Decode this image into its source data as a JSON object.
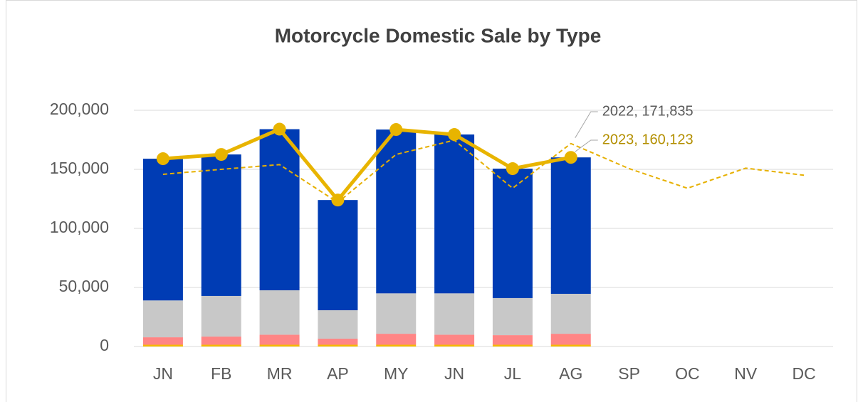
{
  "chart_data": {
    "type": "bar",
    "stacked": true,
    "title": "Motorcycle Domestic Sale by Type",
    "categories": [
      "JN",
      "FB",
      "MR",
      "AP",
      "MY",
      "JN",
      "JL",
      "AG",
      "SP",
      "OC",
      "NV",
      "DC"
    ],
    "ylim": [
      0,
      200000
    ],
    "yticks": [
      {
        "value": 0,
        "label": "0"
      },
      {
        "value": 50000,
        "label": "50,000"
      },
      {
        "value": 100000,
        "label": "100,000"
      },
      {
        "value": 150000,
        "label": "150,000"
      },
      {
        "value": 200000,
        "label": "200,000"
      }
    ],
    "grid": true,
    "series": [
      {
        "color": "#f5b800",
        "values": [
          1500,
          1500,
          1500,
          1500,
          1500,
          1500,
          1500,
          1500,
          null,
          null,
          null,
          null
        ]
      },
      {
        "color": "#ff8585",
        "values": [
          6300,
          6900,
          8500,
          5100,
          9300,
          8500,
          8100,
          9300,
          null,
          null,
          null,
          null
        ]
      },
      {
        "color": "#c8c8c8",
        "values": [
          31200,
          34400,
          37600,
          24100,
          34200,
          35000,
          31400,
          33800,
          null,
          null,
          null,
          null
        ]
      },
      {
        "color": "#003cb4",
        "values": [
          120000,
          119800,
          136400,
          93300,
          138700,
          134500,
          109600,
          115523,
          null,
          null,
          null,
          null
        ]
      },
      {
        "name": "2022",
        "type": "line",
        "style": "dashed",
        "color": "#e6b000",
        "label_color": "#595959",
        "values": [
          145800,
          150000,
          154000,
          122000,
          162600,
          174700,
          134000,
          171835,
          150600,
          134000,
          151000,
          145000
        ],
        "value_labels": [
          null,
          null,
          null,
          null,
          null,
          null,
          null,
          "2022, 171,835",
          null,
          null,
          null,
          null
        ]
      },
      {
        "name": "2023",
        "type": "line",
        "style": "solid",
        "color": "#e8b400",
        "label_color": "#b38f00",
        "values": [
          159000,
          162600,
          184000,
          124000,
          183700,
          179500,
          150600,
          160123,
          null,
          null,
          null,
          null
        ],
        "value_labels": [
          null,
          null,
          null,
          null,
          null,
          null,
          null,
          "2023, 160,123",
          null,
          null,
          null,
          null
        ]
      }
    ]
  }
}
